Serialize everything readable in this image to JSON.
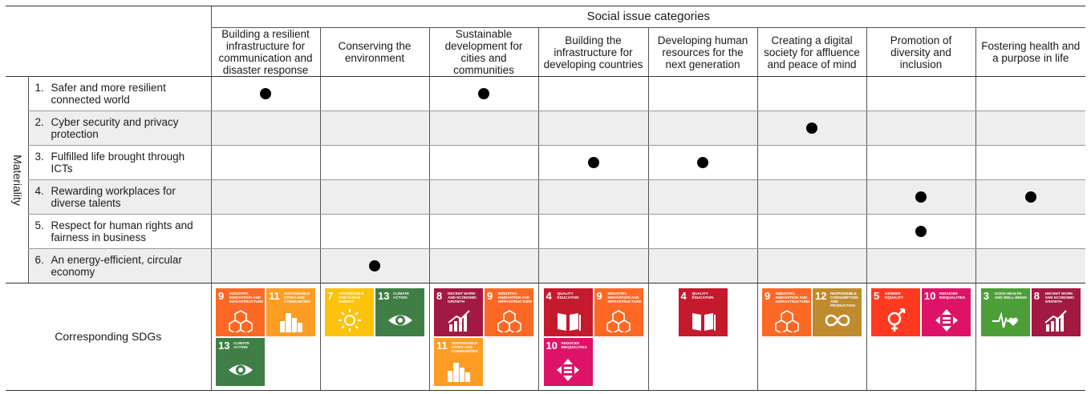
{
  "header": {
    "title": "Social issue categories",
    "columns": [
      "Building a resilient infrastructure for communication and disaster response",
      "Conserving the environment",
      "Sustainable development for cities and communities",
      "Building the infrastructure for developing countries",
      "Developing human resources for the next generation",
      "Creating a digital society for affluence and peace of mind",
      "Promotion of diversity and inclusion",
      "Fostering health and a purpose in life"
    ]
  },
  "side_label": "Materiality",
  "materiality": [
    {
      "num": "1.",
      "line1": "Safer and more resilient",
      "line2": "connected world",
      "marks": [
        0,
        2
      ]
    },
    {
      "num": "2.",
      "line1": "Cyber security and privacy",
      "line2": "protection",
      "marks": [
        5
      ]
    },
    {
      "num": "3.",
      "line1": "Fulfilled life brought through",
      "line2": "ICTs",
      "marks": [
        3,
        4
      ]
    },
    {
      "num": "4.",
      "line1": "Rewarding workplaces for",
      "line2": "diverse talents",
      "marks": [
        6,
        7
      ]
    },
    {
      "num": "5.",
      "line1": "Respect for human rights and",
      "line2": "fairness in business",
      "marks": [
        6
      ]
    },
    {
      "num": "6.",
      "line1": "An energy-efficient, circular",
      "line2": "economy",
      "marks": [
        1
      ]
    }
  ],
  "sdg_label": "Corresponding SDGs",
  "sdg_goals": {
    "3": {
      "name": "Good health and well-being",
      "color": "#4c9f38",
      "icon": "heartbeat-icon"
    },
    "4": {
      "name": "Quality education",
      "color": "#c5192d",
      "icon": "book-icon"
    },
    "5": {
      "name": "Gender equality",
      "color": "#ff3a21",
      "icon": "gender-icon"
    },
    "7": {
      "name": "Affordable and clean energy",
      "color": "#fcc30b",
      "icon": "sun-icon"
    },
    "8": {
      "name": "Decent work and economic growth",
      "color": "#a21942",
      "icon": "growth-chart-icon"
    },
    "9": {
      "name": "Industry, innovation and infrastructure",
      "color": "#fd6925",
      "icon": "cubes-icon"
    },
    "10": {
      "name": "Reduced inequalities",
      "color": "#dd1367",
      "icon": "equality-arrows-icon"
    },
    "11": {
      "name": "Sustainable cities and communities",
      "color": "#fd9d24",
      "icon": "city-icon"
    },
    "12": {
      "name": "Responsible consumption and production",
      "color": "#bf8b2e",
      "icon": "infinity-icon"
    },
    "13": {
      "name": "Climate action",
      "color": "#3f7e44",
      "icon": "eye-globe-icon"
    }
  },
  "sdg_columns": [
    [
      "9",
      "11",
      "13"
    ],
    [
      "7",
      "13"
    ],
    [
      "8",
      "9",
      "11"
    ],
    [
      "4",
      "9",
      "10"
    ],
    [
      "4"
    ],
    [
      "9",
      "12"
    ],
    [
      "5",
      "10"
    ],
    [
      "3",
      "8"
    ]
  ]
}
